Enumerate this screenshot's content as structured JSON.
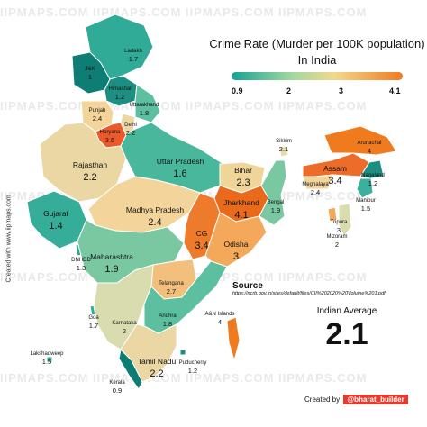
{
  "title": {
    "line1": "Crime Rate (Murder per 100K population)",
    "line2": "In India"
  },
  "legend": {
    "ticks": [
      "0.9",
      "2",
      "3",
      "4.1"
    ],
    "gradient": [
      "#14a394",
      "#9fd8a0",
      "#f2d98c",
      "#f07a1e"
    ]
  },
  "source": {
    "label": "Source",
    "url": "https://ncrb.gov.in/sites/default/files/CII%202020%20Volume%201.pdf"
  },
  "average": {
    "label": "Indian Average",
    "value": "2.1"
  },
  "credits": {
    "left": "Created with www.iipmaps.com",
    "right_prefix": "Created by",
    "right_handle": "@bharat_builder"
  },
  "watermark": "IIPMAPS.COM   IIPMAPS.COM   IIPMAPS.COM   IIPMAPS.COM",
  "chart_data": {
    "type": "choropleth",
    "title": "Crime Rate (Murder per 100K population) In India",
    "value_range": [
      0.9,
      4.1
    ],
    "regions": [
      {
        "name": "Ladakh",
        "value": 1.7,
        "color": "#2fab98"
      },
      {
        "name": "J&K",
        "value": 1,
        "color": "#0e7d73"
      },
      {
        "name": "Himachal",
        "value": 1.2,
        "color": "#1d8f82"
      },
      {
        "name": "Punjab",
        "value": 2.4,
        "color": "#f3d49a"
      },
      {
        "name": "Uttarakhand",
        "value": 1.8,
        "color": "#5cbf9f"
      },
      {
        "name": "Haryana",
        "value": 3.5,
        "color": "#ec5a2a"
      },
      {
        "name": "Delhi",
        "value": 2.2,
        "color": "#ebd7a4"
      },
      {
        "name": "Rajasthan",
        "value": 2.2,
        "color": "#ebd7a4"
      },
      {
        "name": "Uttar Pradesh",
        "value": 1.6,
        "color": "#48b79c"
      },
      {
        "name": "Bihar",
        "value": 2.3,
        "color": "#f0d598"
      },
      {
        "name": "Sikkim",
        "value": 2.1,
        "color": "#e6dbac"
      },
      {
        "name": "Arunachal",
        "value": 4,
        "color": "#f07a1e"
      },
      {
        "name": "Assam",
        "value": 3.4,
        "color": "#ee6c29"
      },
      {
        "name": "Nagaland",
        "value": 1.2,
        "color": "#1d8f82"
      },
      {
        "name": "Meghalaya",
        "value": 2.4,
        "color": "#f3d49a"
      },
      {
        "name": "Manipur",
        "value": 1.5,
        "color": "#3bb09a"
      },
      {
        "name": "Tripura",
        "value": 3,
        "color": "#f3a85a"
      },
      {
        "name": "Mizoram",
        "value": 2,
        "color": "#d8dcae"
      },
      {
        "name": "Gujarat",
        "value": 1.4,
        "color": "#36ad98"
      },
      {
        "name": "Madhya Pradesh",
        "value": 2.4,
        "color": "#f3d49a"
      },
      {
        "name": "Jharkhand",
        "value": 4.1,
        "color": "#ea6a1c"
      },
      {
        "name": "Bengal",
        "value": 1.9,
        "color": "#7ac8a2"
      },
      {
        "name": "CG",
        "value": 3.4,
        "color": "#ee7a2c"
      },
      {
        "name": "Odisha",
        "value": 3,
        "color": "#f3a85a"
      },
      {
        "name": "DNHDD",
        "value": 1.3,
        "color": "#29a595"
      },
      {
        "name": "Maharashtra",
        "value": 1.9,
        "color": "#7ac8a2"
      },
      {
        "name": "Telangana",
        "value": 2.7,
        "color": "#f3bf7c"
      },
      {
        "name": "Goa",
        "value": 1.7,
        "color": "#2fab98"
      },
      {
        "name": "Karnataka",
        "value": 2,
        "color": "#d8dcae"
      },
      {
        "name": "Andhra",
        "value": 1.8,
        "color": "#5cbf9f"
      },
      {
        "name": "A&N Islands",
        "value": 4,
        "color": "#f07a1e"
      },
      {
        "name": "Lakshadweep",
        "value": 1.5,
        "color": "#3bb09a"
      },
      {
        "name": "Kerala",
        "value": 0.9,
        "color": "#0c7d72"
      },
      {
        "name": "Tamil Nadu",
        "value": 2.2,
        "color": "#ebd7a4"
      },
      {
        "name": "Puducherry",
        "value": 1.2,
        "color": "#1d8f82"
      }
    ]
  }
}
